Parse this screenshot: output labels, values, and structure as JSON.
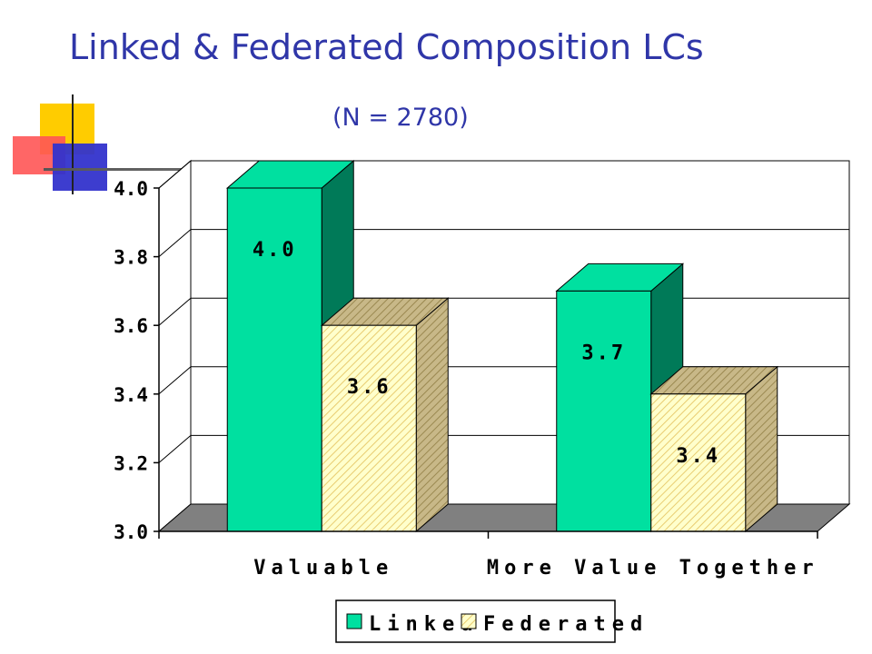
{
  "slide": {
    "title": "Linked & Federated Composition LCs",
    "subtitle": "(N = 2780)"
  },
  "colors": {
    "title": "#2f36a8",
    "linked_front": "#00e0a0",
    "linked_side": "#007a58",
    "federated_front": "#ffffcc",
    "federated_hatch": "#e8cc70",
    "floor": "#808080",
    "deco_yellow": "#ffcc00",
    "deco_red": "#ff3333",
    "deco_blue": "#3333cc"
  },
  "chart_data": {
    "type": "bar",
    "title": "Linked & Federated Composition LCs",
    "subtitle": "(N = 2780)",
    "categories": [
      "Valuable",
      "More Value Together"
    ],
    "series": [
      {
        "name": "Linked",
        "values": [
          4.0,
          3.7
        ],
        "labels": [
          "4.0",
          "3.7"
        ]
      },
      {
        "name": "Federated",
        "values": [
          3.6,
          3.4
        ],
        "labels": [
          "3.6",
          "3.4"
        ]
      }
    ],
    "ylim": [
      3.0,
      4.0
    ],
    "yticks": [
      "3.0",
      "3.2",
      "3.4",
      "3.6",
      "3.8",
      "4.0"
    ],
    "xlabel": "",
    "ylabel": "",
    "grid": true,
    "legend": "bottom",
    "style": "3d-clustered-column"
  }
}
